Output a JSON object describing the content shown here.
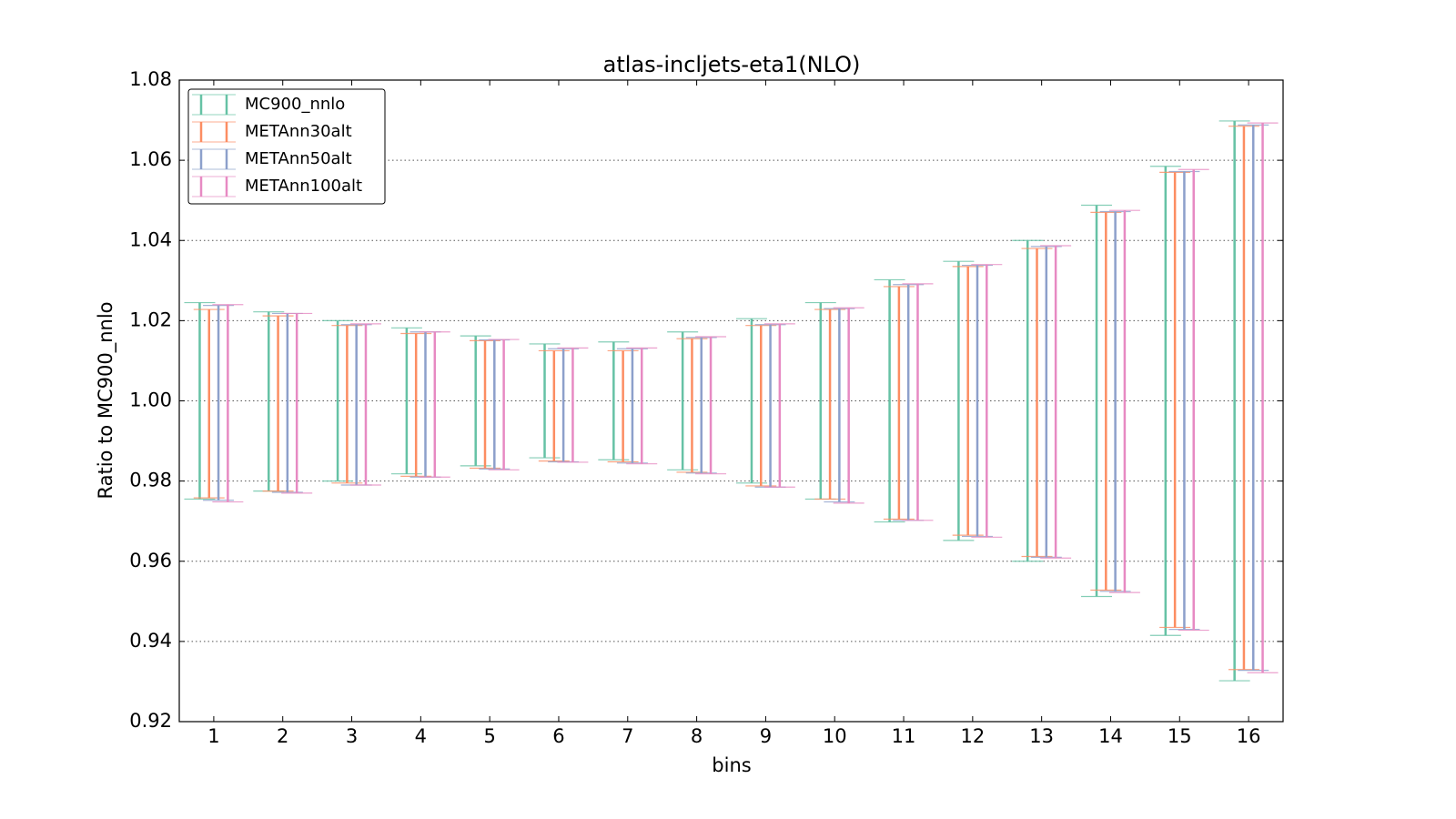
{
  "chart_data": {
    "type": "errorbar",
    "title": "atlas-incljets-eta1(NLO)",
    "xlabel": "bins",
    "ylabel": "Ratio to MC900_nnlo",
    "x": [
      1,
      2,
      3,
      4,
      5,
      6,
      7,
      8,
      9,
      10,
      11,
      12,
      13,
      14,
      15,
      16
    ],
    "xlim": [
      0.5,
      16.5
    ],
    "xticks": [
      1,
      2,
      3,
      4,
      5,
      6,
      7,
      8,
      9,
      10,
      11,
      12,
      13,
      14,
      15,
      16
    ],
    "ylim": [
      0.92,
      1.08
    ],
    "yticks": [
      0.92,
      0.94,
      0.96,
      0.98,
      {
        "value": 1,
        "label": "1.00"
      },
      1.02,
      1.04,
      1.06,
      1.08
    ],
    "grid": true,
    "legend": "upper left",
    "series": [
      {
        "name": "MC900_nnlo",
        "color": "#66c2a5",
        "low": [
          0.9755,
          0.9775,
          0.98,
          0.9818,
          0.9838,
          0.9858,
          0.9853,
          0.9828,
          0.9795,
          0.9755,
          0.9698,
          0.9652,
          0.96,
          0.9512,
          0.9415,
          0.9302
        ],
        "high": [
          1.0245,
          1.0222,
          1.02,
          1.0182,
          1.0162,
          1.0142,
          1.0147,
          1.0172,
          1.0205,
          1.0245,
          1.0302,
          1.0348,
          1.04,
          1.0488,
          1.0585,
          1.0698
        ]
      },
      {
        "name": "METAnn30alt",
        "color": "#fc8d62",
        "low": [
          0.9758,
          0.9775,
          0.9795,
          0.9812,
          0.9832,
          0.985,
          0.9848,
          0.9822,
          0.9788,
          0.9755,
          0.9705,
          0.9665,
          0.9612,
          0.9528,
          0.9435,
          0.933
        ],
        "high": [
          1.0228,
          1.0212,
          1.0188,
          1.0168,
          1.015,
          1.0125,
          1.0125,
          1.0155,
          1.0188,
          1.0228,
          1.0285,
          1.0335,
          1.038,
          1.047,
          1.057,
          1.0685
        ]
      },
      {
        "name": "METAnn50alt",
        "color": "#8da0cb",
        "low": [
          0.9752,
          0.9772,
          0.979,
          0.981,
          0.983,
          0.9848,
          0.9845,
          0.982,
          0.9785,
          0.9748,
          0.9702,
          0.9662,
          0.961,
          0.9525,
          0.943,
          0.9328
        ],
        "high": [
          1.0238,
          1.0218,
          1.019,
          1.0172,
          1.0152,
          1.013,
          1.013,
          1.0158,
          1.019,
          1.023,
          1.029,
          1.0338,
          1.0385,
          1.0472,
          1.0572,
          1.0688
        ]
      },
      {
        "name": "METAnn100alt",
        "color": "#e78ac3",
        "low": [
          0.9748,
          0.977,
          0.979,
          0.981,
          0.9828,
          0.9847,
          0.9843,
          0.9818,
          0.9785,
          0.9745,
          0.9702,
          0.966,
          0.9608,
          0.9522,
          0.9428,
          0.9322
        ],
        "high": [
          1.024,
          1.0218,
          1.0192,
          1.0172,
          1.0153,
          1.0132,
          1.0132,
          1.016,
          1.0192,
          1.0232,
          1.0292,
          1.034,
          1.0387,
          1.0475,
          1.0577,
          1.0693
        ]
      }
    ]
  }
}
